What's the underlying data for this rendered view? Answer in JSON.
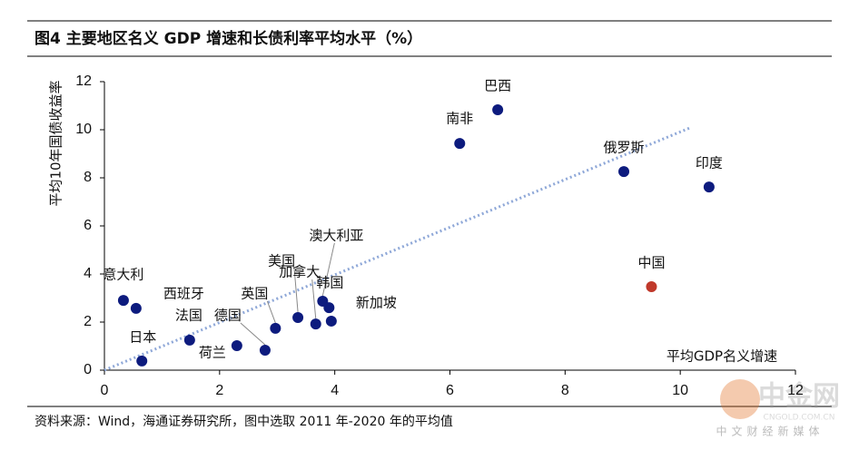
{
  "chart_data": {
    "type": "scatter",
    "title": "图4  主要地区名义 GDP 增速和长债利率平均水平（%）",
    "x_label": "平均GDP名义增速",
    "y_label": "平均10年国债收益率",
    "source": "资料来源：Wind，海通证券研究所，图中选取 2011 年-2020 年的平均值",
    "watermark": [
      "中金网",
      "CNGOLD.COM.CN",
      "中文财经新媒体"
    ],
    "xlim": [
      0,
      12
    ],
    "xticks": [
      0,
      2,
      4,
      6,
      8,
      10,
      12
    ],
    "ylim": [
      0,
      12
    ],
    "yticks": [
      0,
      2,
      4,
      6,
      8,
      10,
      12
    ],
    "trendline": {
      "x": [
        0,
        10.17
      ],
      "y": [
        0,
        10.08
      ],
      "color": "#8fa8d8"
    },
    "points": [
      {
        "label": "巴西",
        "x": 6.83,
        "y": 10.83,
        "color": "#0d1b7e"
      },
      {
        "label": "南非",
        "x": 6.17,
        "y": 9.43,
        "color": "#0d1b7e"
      },
      {
        "label": "俄罗斯",
        "x": 9.02,
        "y": 8.26,
        "color": "#0d1b7e"
      },
      {
        "label": "印度",
        "x": 10.5,
        "y": 7.62,
        "color": "#0d1b7e"
      },
      {
        "label": "中国",
        "x": 9.5,
        "y": 3.47,
        "color": "#c0392b"
      },
      {
        "label": "意大利",
        "x": 0.33,
        "y": 2.9,
        "color": "#0d1b7e"
      },
      {
        "label": "西班牙",
        "x": 0.55,
        "y": 2.57,
        "color": "#0d1b7e"
      },
      {
        "label": "日本",
        "x": 0.65,
        "y": 0.38,
        "color": "#0d1b7e"
      },
      {
        "label": "法国",
        "x": 1.48,
        "y": 1.25,
        "color": "#0d1b7e"
      },
      {
        "label": "荷兰",
        "x": 2.3,
        "y": 1.02,
        "color": "#0d1b7e"
      },
      {
        "label": "德国",
        "x": 2.79,
        "y": 0.83,
        "color": "#0d1b7e"
      },
      {
        "label": "英国",
        "x": 2.97,
        "y": 1.74,
        "color": "#0d1b7e"
      },
      {
        "label": "美国",
        "x": 3.36,
        "y": 2.19,
        "color": "#0d1b7e"
      },
      {
        "label": "加拿大",
        "x": 3.67,
        "y": 1.92,
        "color": "#0d1b7e"
      },
      {
        "label": "澳大利亚",
        "x": 3.79,
        "y": 2.87,
        "color": "#0d1b7e"
      },
      {
        "label": "韩国",
        "x": 3.9,
        "y": 2.6,
        "color": "#0d1b7e"
      },
      {
        "label": "新加坡",
        "x": 3.94,
        "y": 2.04,
        "color": "#0d1b7e"
      }
    ]
  }
}
